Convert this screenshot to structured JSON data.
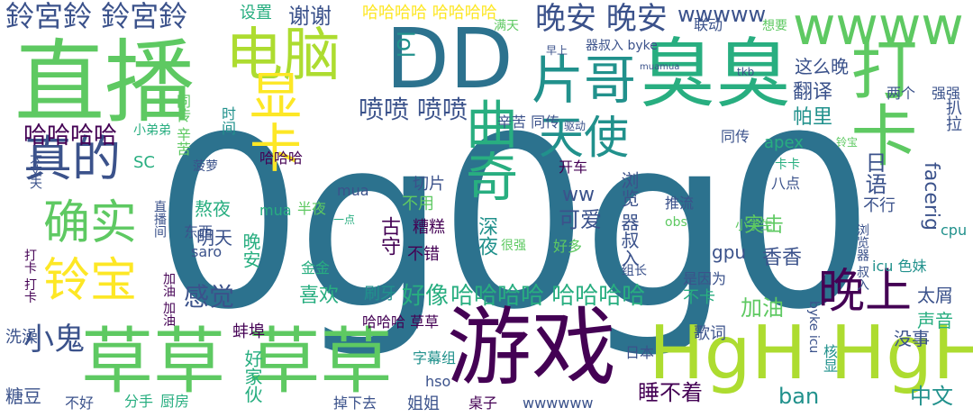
{
  "cloud": {
    "palette": [
      "#440154",
      "#3b528b",
      "#2c728e",
      "#21918c",
      "#28ae80",
      "#5ec962",
      "#addc30",
      "#fde725"
    ],
    "words": [
      {
        "text": "0g0g0",
        "color": "#2c728e"
      },
      {
        "text": "直播",
        "color": "#5ec962"
      },
      {
        "text": "游戏",
        "color": "#440154"
      },
      {
        "text": "草草 草草",
        "color": "#5ec962"
      },
      {
        "text": "HgH HgH",
        "color": "#addc30"
      },
      {
        "text": "DD",
        "color": "#2c728e"
      },
      {
        "text": "臭臭",
        "color": "#28ae80"
      },
      {
        "text": "wwww",
        "color": "#5ec962"
      },
      {
        "text": "电脑",
        "color": "#addc30"
      },
      {
        "text": "片哥",
        "color": "#21918c"
      },
      {
        "text": "显卡",
        "color": "#fde725"
      },
      {
        "text": "曲奇",
        "color": "#28ae80"
      },
      {
        "text": "天使",
        "color": "#21918c"
      },
      {
        "text": "真的",
        "color": "#3b528b"
      },
      {
        "text": "确实",
        "color": "#5ec962"
      },
      {
        "text": "铃宝",
        "color": "#fde725"
      },
      {
        "text": "晚上",
        "color": "#440154"
      },
      {
        "text": "打卡",
        "color": "#5ec962"
      },
      {
        "text": "小鬼",
        "color": "#3b528b"
      },
      {
        "text": "鈴宮鈴 鈴宮鈴",
        "color": "#3b528b"
      },
      {
        "text": "晚安 晚安",
        "color": "#3b528b"
      },
      {
        "text": "哈哈哈哈",
        "color": "#440154"
      },
      {
        "text": "感觉",
        "color": "#3b528b"
      },
      {
        "text": "好像",
        "color": "#28ae80"
      },
      {
        "text": "哈哈哈哈 哈哈哈哈",
        "color": "#28ae80"
      },
      {
        "text": "喷喷 喷喷",
        "color": "#3b528b"
      },
      {
        "text": "lol",
        "color": "#21918c"
      },
      {
        "text": "wwwww",
        "color": "#3b528b"
      },
      {
        "text": "哈哈哈哈 哈哈哈哈",
        "color": "#fde725"
      },
      {
        "text": "谢谢",
        "color": "#3b528b"
      },
      {
        "text": "设置",
        "color": "#28ae80"
      },
      {
        "text": "这么晚",
        "color": "#3b528b"
      },
      {
        "text": "翻译",
        "color": "#3b528b"
      },
      {
        "text": "帕里",
        "color": "#21918c"
      },
      {
        "text": "apex",
        "color": "#28ae80"
      },
      {
        "text": "同传",
        "color": "#3b528b"
      },
      {
        "text": "facerig",
        "color": "#3b528b"
      },
      {
        "text": "日语",
        "color": "#3b528b"
      },
      {
        "text": "不行",
        "color": "#3b528b"
      },
      {
        "text": "cpu",
        "color": "#21918c"
      },
      {
        "text": "两个",
        "color": "#3b528b"
      },
      {
        "text": "强强",
        "color": "#3b528b"
      },
      {
        "text": "扒拉",
        "color": "#3b528b"
      },
      {
        "text": "太屑",
        "color": "#3b528b"
      },
      {
        "text": "声音",
        "color": "#28ae80"
      },
      {
        "text": "没事",
        "color": "#3b528b"
      },
      {
        "text": "中文",
        "color": "#21918c"
      },
      {
        "text": "ban",
        "color": "#21918c"
      },
      {
        "text": "睡不着",
        "color": "#440154"
      },
      {
        "text": "歌词",
        "color": "#3b528b"
      },
      {
        "text": "加油",
        "color": "#5ec962"
      },
      {
        "text": "不卡",
        "color": "#28ae80"
      },
      {
        "text": "香香",
        "color": "#3b528b"
      },
      {
        "text": "gpu",
        "color": "#3b528b"
      },
      {
        "text": "突击",
        "color": "#5ec962"
      },
      {
        "text": "可爱",
        "color": "#3b528b"
      },
      {
        "text": "浏览 器叔入",
        "color": "#3b528b"
      },
      {
        "text": "ww",
        "color": "#3b528b"
      },
      {
        "text": "开车",
        "color": "#440154"
      },
      {
        "text": "切片",
        "color": "#3b528b"
      },
      {
        "text": "不用",
        "color": "#5ec962"
      },
      {
        "text": "糟糕",
        "color": "#440154"
      },
      {
        "text": "不错",
        "color": "#440154"
      },
      {
        "text": "深夜",
        "color": "#21918c"
      },
      {
        "text": "古守",
        "color": "#440154"
      },
      {
        "text": "喜欢",
        "color": "#28ae80"
      },
      {
        "text": "刷牙",
        "color": "#21918c"
      },
      {
        "text": "哈哈哈 草草",
        "color": "#440154"
      },
      {
        "text": "明天",
        "color": "#3b528b"
      },
      {
        "text": "熬夜",
        "color": "#28ae80"
      },
      {
        "text": "晚安",
        "color": "#28ae80"
      },
      {
        "text": "saro",
        "color": "#3b528b"
      },
      {
        "text": "东西",
        "color": "#3b528b"
      },
      {
        "text": "mua",
        "color": "#3b528b"
      },
      {
        "text": "哈哈哈",
        "color": "#440154"
      },
      {
        "text": "蚌埠",
        "color": "#440154"
      },
      {
        "text": "好家伙",
        "color": "#28ae80"
      },
      {
        "text": "糖豆",
        "color": "#3b528b"
      },
      {
        "text": "洗澡",
        "color": "#3b528b"
      },
      {
        "text": "分手",
        "color": "#28ae80"
      },
      {
        "text": "厨房",
        "color": "#28ae80"
      },
      {
        "text": "不好",
        "color": "#3b528b"
      },
      {
        "text": "姐姐",
        "color": "#3b528b"
      },
      {
        "text": "hso",
        "color": "#3b528b"
      },
      {
        "text": "字幕组",
        "color": "#21918c"
      },
      {
        "text": "掉下去",
        "color": "#3b528b"
      },
      {
        "text": "桌子",
        "color": "#440154"
      },
      {
        "text": "wwwwww",
        "color": "#3b528b"
      },
      {
        "text": "日本",
        "color": "#3b528b"
      },
      {
        "text": "菠萝",
        "color": "#3b528b"
      },
      {
        "text": "小弟弟",
        "color": "#28ae80"
      },
      {
        "text": "SC",
        "color": "#28ae80"
      },
      {
        "text": "大丈夫",
        "color": "#3b528b"
      },
      {
        "text": "直播间",
        "color": "#3b528b"
      },
      {
        "text": "打卡 打卡",
        "color": "#440154"
      },
      {
        "text": "加油 加油",
        "color": "#440154"
      },
      {
        "text": "金金",
        "color": "#28ae80"
      },
      {
        "text": "半夜",
        "color": "#5ec962"
      },
      {
        "text": "一点",
        "color": "#28ae80"
      },
      {
        "text": "推流",
        "color": "#3b528b"
      },
      {
        "text": "obs",
        "color": "#5ec962"
      },
      {
        "text": "小学生",
        "color": "#5ec962"
      },
      {
        "text": "组长",
        "color": "#3b528b"
      },
      {
        "text": "是因为",
        "color": "#3b528b"
      },
      {
        "text": "icu 色妹",
        "color": "#21918c"
      },
      {
        "text": "浏览器 叔入",
        "color": "#3b528b"
      },
      {
        "text": "卡卡",
        "color": "#28ae80"
      },
      {
        "text": "八点",
        "color": "#3b528b"
      },
      {
        "text": "驱动",
        "color": "#3b528b"
      },
      {
        "text": "辛苦 同传",
        "color": "#3b528b"
      },
      {
        "text": "同传 辛苦",
        "color": "#5ec962"
      },
      {
        "text": "时间",
        "color": "#21918c"
      },
      {
        "text": "联动",
        "color": "#3b528b"
      },
      {
        "text": "想要",
        "color": "#5ec962"
      },
      {
        "text": "器叔入 byke",
        "color": "#3b528b"
      },
      {
        "text": "早上",
        "color": "#3b528b"
      },
      {
        "text": "满天",
        "color": "#5ec962"
      },
      {
        "text": "tkb",
        "color": "#3b528b"
      },
      {
        "text": "铃宝",
        "color": "#5ec962"
      },
      {
        "text": "byke icu",
        "color": "#3b528b"
      },
      {
        "text": "核显",
        "color": "#21918c"
      },
      {
        "text": "mua",
        "color": "#28ae80"
      },
      {
        "text": "好多",
        "color": "#5ec962"
      },
      {
        "text": "很强",
        "color": "#5ec962"
      },
      {
        "text": "muamua",
        "color": "#3b528b"
      }
    ]
  }
}
